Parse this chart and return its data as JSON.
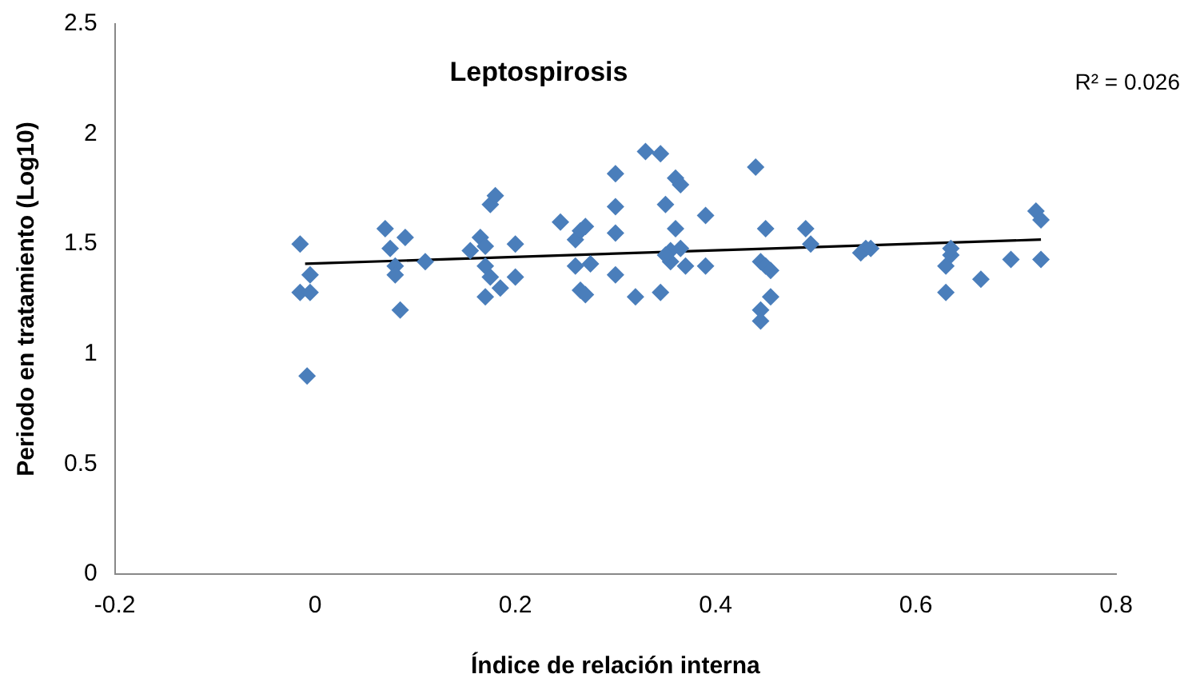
{
  "chart_data": {
    "type": "scatter",
    "title": "Leptospirosis",
    "xlabel": "Índice de relación interna",
    "ylabel": "Periodo en tratamiento (Log10)",
    "annotations": [
      "R² = 0.026"
    ],
    "xlim": [
      -0.2,
      0.8
    ],
    "xticks": [
      -0.2,
      0,
      0.2,
      0.4,
      0.6,
      0.8
    ],
    "ylim": [
      0,
      2.5
    ],
    "yticks": [
      0,
      0.5,
      1,
      1.5,
      2,
      2.5
    ],
    "grid": false,
    "legend": false,
    "marker": "diamond",
    "series": [
      {
        "color": "#4a7ebb",
        "x": [
          -0.015,
          -0.015,
          -0.005,
          -0.005,
          -0.008,
          0.07,
          0.075,
          0.08,
          0.08,
          0.09,
          0.085,
          0.11,
          0.155,
          0.165,
          0.17,
          0.17,
          0.175,
          0.17,
          0.175,
          0.18,
          0.185,
          0.2,
          0.2,
          0.245,
          0.26,
          0.265,
          0.26,
          0.265,
          0.27,
          0.27,
          0.275,
          0.3,
          0.3,
          0.3,
          0.3,
          0.32,
          0.33,
          0.345,
          0.35,
          0.345,
          0.355,
          0.355,
          0.36,
          0.36,
          0.365,
          0.365,
          0.37,
          0.35,
          0.39,
          0.39,
          0.44,
          0.445,
          0.45,
          0.445,
          0.445,
          0.45,
          0.455,
          0.455,
          0.49,
          0.495,
          0.545,
          0.55,
          0.555,
          0.63,
          0.635,
          0.635,
          0.63,
          0.665,
          0.695,
          0.72,
          0.725,
          0.725
        ],
        "values": [
          1.5,
          1.28,
          1.28,
          1.36,
          0.9,
          1.57,
          1.48,
          1.4,
          1.36,
          1.53,
          1.2,
          1.42,
          1.47,
          1.53,
          1.49,
          1.4,
          1.35,
          1.26,
          1.68,
          1.72,
          1.3,
          1.5,
          1.35,
          1.6,
          1.52,
          1.56,
          1.4,
          1.29,
          1.58,
          1.27,
          1.41,
          1.82,
          1.67,
          1.55,
          1.36,
          1.26,
          1.92,
          1.91,
          1.68,
          1.28,
          1.47,
          1.42,
          1.8,
          1.57,
          1.77,
          1.48,
          1.4,
          1.45,
          1.63,
          1.4,
          1.85,
          1.42,
          1.57,
          1.2,
          1.15,
          1.4,
          1.26,
          1.38,
          1.57,
          1.5,
          1.46,
          1.48,
          1.48,
          1.4,
          1.45,
          1.48,
          1.28,
          1.34,
          1.43,
          1.65,
          1.61,
          1.43
        ]
      },
      {
        "type": "line",
        "color": "#000000",
        "marker": "none",
        "x": [
          -0.01,
          0.725
        ],
        "values": [
          1.41,
          1.52
        ]
      }
    ]
  }
}
